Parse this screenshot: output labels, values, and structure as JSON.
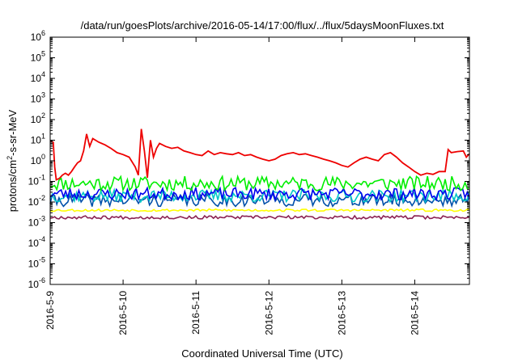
{
  "chart_data": {
    "type": "line",
    "title": "/data/run/goesPlots/archive/2016-05-14/17:00/flux/../flux/5daysMoonFluxes.txt",
    "xlabel": "Coordinated Universal Time (UTC)",
    "ylabel": {
      "pre": "protons/cm",
      "sup": "2",
      "post": "-s-sr-MeV"
    },
    "yscale": "log",
    "ylim": [
      1e-06,
      1000000.0
    ],
    "y_ticks": [
      {
        "base": "10",
        "exp": "-6"
      },
      {
        "base": "10",
        "exp": "-5"
      },
      {
        "base": "10",
        "exp": "-4"
      },
      {
        "base": "10",
        "exp": "-3"
      },
      {
        "base": "10",
        "exp": "-2"
      },
      {
        "base": "10",
        "exp": "-1"
      },
      {
        "base": "10",
        "exp": "0"
      },
      {
        "base": "10",
        "exp": "1"
      },
      {
        "base": "10",
        "exp": "2"
      },
      {
        "base": "10",
        "exp": "3"
      },
      {
        "base": "10",
        "exp": "4"
      },
      {
        "base": "10",
        "exp": "5"
      },
      {
        "base": "10",
        "exp": "6"
      }
    ],
    "xlim": [
      "2016-05-09 00:00",
      "2016-05-14 18:00"
    ],
    "x_tick_labels": [
      "2016-5-9",
      "2016-5-10",
      "2016-5-11",
      "2016-5-12",
      "2016-5-13",
      "2016-5-14"
    ],
    "grid": false,
    "series": [
      {
        "color": "#ee0000",
        "values": [
          [
            "2016-05-09 00:00",
            9
          ],
          [
            "2016-05-09 01:00",
            8
          ],
          [
            "2016-05-09 01:30",
            0.5
          ],
          [
            "2016-05-09 02:00",
            0.12
          ],
          [
            "2016-05-09 03:00",
            0.14
          ],
          [
            "2016-05-09 04:00",
            0.2
          ],
          [
            "2016-05-09 05:00",
            0.25
          ],
          [
            "2016-05-09 06:00",
            0.2
          ],
          [
            "2016-05-09 07:00",
            0.3
          ],
          [
            "2016-05-09 08:00",
            0.5
          ],
          [
            "2016-05-09 09:00",
            0.8
          ],
          [
            "2016-05-09 10:00",
            1.0
          ],
          [
            "2016-05-09 11:00",
            3
          ],
          [
            "2016-05-09 12:00",
            20
          ],
          [
            "2016-05-09 13:00",
            5
          ],
          [
            "2016-05-09 14:00",
            12
          ],
          [
            "2016-05-09 16:00",
            8
          ],
          [
            "2016-05-09 18:00",
            6
          ],
          [
            "2016-05-09 20:00",
            4
          ],
          [
            "2016-05-09 22:00",
            2.5
          ],
          [
            "2016-05-10 00:00",
            2.0
          ],
          [
            "2016-05-10 02:00",
            1.5
          ],
          [
            "2016-05-10 04:00",
            0.5
          ],
          [
            "2016-05-10 05:00",
            0.2
          ],
          [
            "2016-05-10 06:00",
            35
          ],
          [
            "2016-05-10 07:00",
            3
          ],
          [
            "2016-05-10 08:00",
            0.15
          ],
          [
            "2016-05-10 09:00",
            10
          ],
          [
            "2016-05-10 10:00",
            1.5
          ],
          [
            "2016-05-10 11:00",
            4
          ],
          [
            "2016-05-10 12:00",
            7
          ],
          [
            "2016-05-10 14:00",
            5
          ],
          [
            "2016-05-10 16:00",
            4
          ],
          [
            "2016-05-10 18:00",
            4.5
          ],
          [
            "2016-05-10 20:00",
            3
          ],
          [
            "2016-05-10 22:00",
            2.5
          ],
          [
            "2016-05-11 00:00",
            2.0
          ],
          [
            "2016-05-11 02:00",
            1.8
          ],
          [
            "2016-05-11 04:00",
            3.0
          ],
          [
            "2016-05-11 06:00",
            2.0
          ],
          [
            "2016-05-11 08:00",
            2.5
          ],
          [
            "2016-05-11 10:00",
            2.2
          ],
          [
            "2016-05-11 12:00",
            2.0
          ],
          [
            "2016-05-11 14:00",
            2.5
          ],
          [
            "2016-05-11 16:00",
            1.8
          ],
          [
            "2016-05-11 18:00",
            2.0
          ],
          [
            "2016-05-11 20:00",
            1.5
          ],
          [
            "2016-05-11 22:00",
            1.2
          ],
          [
            "2016-05-12 00:00",
            1.0
          ],
          [
            "2016-05-12 02:00",
            1.2
          ],
          [
            "2016-05-12 04:00",
            1.8
          ],
          [
            "2016-05-12 06:00",
            2.2
          ],
          [
            "2016-05-12 08:00",
            2.5
          ],
          [
            "2016-05-12 10:00",
            2.0
          ],
          [
            "2016-05-12 12:00",
            2.2
          ],
          [
            "2016-05-12 14:00",
            1.8
          ],
          [
            "2016-05-12 16:00",
            1.5
          ],
          [
            "2016-05-12 18:00",
            1.2
          ],
          [
            "2016-05-12 20:00",
            1.0
          ],
          [
            "2016-05-12 22:00",
            0.8
          ],
          [
            "2016-05-13 00:00",
            0.6
          ],
          [
            "2016-05-13 02:00",
            0.5
          ],
          [
            "2016-05-13 04:00",
            0.8
          ],
          [
            "2016-05-13 06:00",
            1.2
          ],
          [
            "2016-05-13 08:00",
            1.5
          ],
          [
            "2016-05-13 10:00",
            1.2
          ],
          [
            "2016-05-13 12:00",
            1.0
          ],
          [
            "2016-05-13 14:00",
            2.0
          ],
          [
            "2016-05-13 16:00",
            2.5
          ],
          [
            "2016-05-13 18:00",
            1.5
          ],
          [
            "2016-05-13 20:00",
            0.8
          ],
          [
            "2016-05-13 22:00",
            0.5
          ],
          [
            "2016-05-14 00:00",
            0.3
          ],
          [
            "2016-05-14 02:00",
            0.2
          ],
          [
            "2016-05-14 04:00",
            0.25
          ],
          [
            "2016-05-14 06:00",
            0.22
          ],
          [
            "2016-05-14 08:00",
            0.3
          ],
          [
            "2016-05-14 10:00",
            0.3
          ],
          [
            "2016-05-14 11:00",
            3.5
          ],
          [
            "2016-05-14 12:00",
            2.5
          ],
          [
            "2016-05-14 14:00",
            2.8
          ],
          [
            "2016-05-14 16:00",
            3.0
          ],
          [
            "2016-05-14 17:00",
            1.5
          ],
          [
            "2016-05-14 18:00",
            2.2
          ]
        ]
      },
      {
        "color": "#00ee00",
        "level": 0.08,
        "amp": 0.35,
        "seed": 11
      },
      {
        "color": "#0000ee",
        "level": 0.025,
        "amp": 0.3,
        "seed": 23
      },
      {
        "color": "#00c8c8",
        "level": 0.02,
        "amp": 0.3,
        "seed": 37
      },
      {
        "color": "#0050aa",
        "level": 0.012,
        "amp": 0.3,
        "seed": 41
      },
      {
        "color": "#ffff00",
        "level": 0.004,
        "amp": 0.06,
        "seed": 53
      },
      {
        "color": "#8b2252",
        "level": 0.0018,
        "amp": 0.08,
        "seed": 67
      }
    ]
  }
}
